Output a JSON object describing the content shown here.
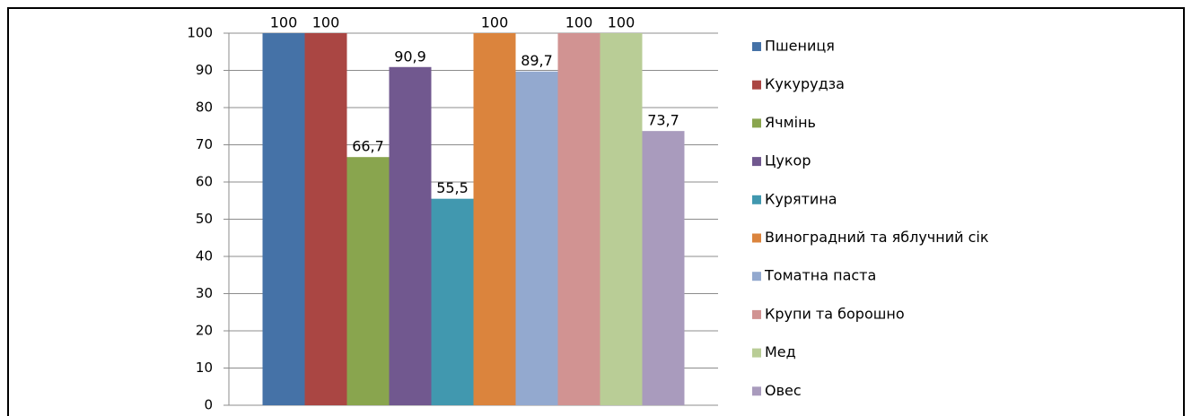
{
  "chart_data": {
    "type": "bar",
    "categories": [
      null
    ],
    "series": [
      {
        "name": "Пшениця",
        "color": "#4572a7",
        "values": [
          100
        ],
        "value_labels": [
          "100"
        ]
      },
      {
        "name": "Кукурудза",
        "color": "#aa4643",
        "values": [
          100
        ],
        "value_labels": [
          "100"
        ]
      },
      {
        "name": "Ячмінь",
        "color": "#89a54e",
        "values": [
          66.7
        ],
        "value_labels": [
          "66,7"
        ]
      },
      {
        "name": "Цукор",
        "color": "#71588f",
        "values": [
          90.9
        ],
        "value_labels": [
          "90,9"
        ]
      },
      {
        "name": "Курятина",
        "color": "#4198af",
        "values": [
          55.5
        ],
        "value_labels": [
          "55,5"
        ]
      },
      {
        "name": "Виноградний та яблучний сік",
        "color": "#db843d",
        "values": [
          100
        ],
        "value_labels": [
          "100"
        ]
      },
      {
        "name": "Томатна паста",
        "color": "#93a9cf",
        "values": [
          89.7
        ],
        "value_labels": [
          "89,7"
        ]
      },
      {
        "name": "Крупи та борошно",
        "color": "#d19392",
        "values": [
          100
        ],
        "value_labels": [
          "100"
        ]
      },
      {
        "name": "Мед",
        "color": "#b9cd96",
        "values": [
          100
        ],
        "value_labels": [
          "100"
        ]
      },
      {
        "name": "Овес",
        "color": "#a99bbd",
        "values": [
          73.7
        ],
        "value_labels": [
          "73,7"
        ]
      }
    ],
    "ylim": [
      0,
      100
    ],
    "yticks": [
      0,
      10,
      20,
      30,
      40,
      50,
      60,
      70,
      80,
      90,
      100
    ],
    "grid": true,
    "legend": "right"
  }
}
